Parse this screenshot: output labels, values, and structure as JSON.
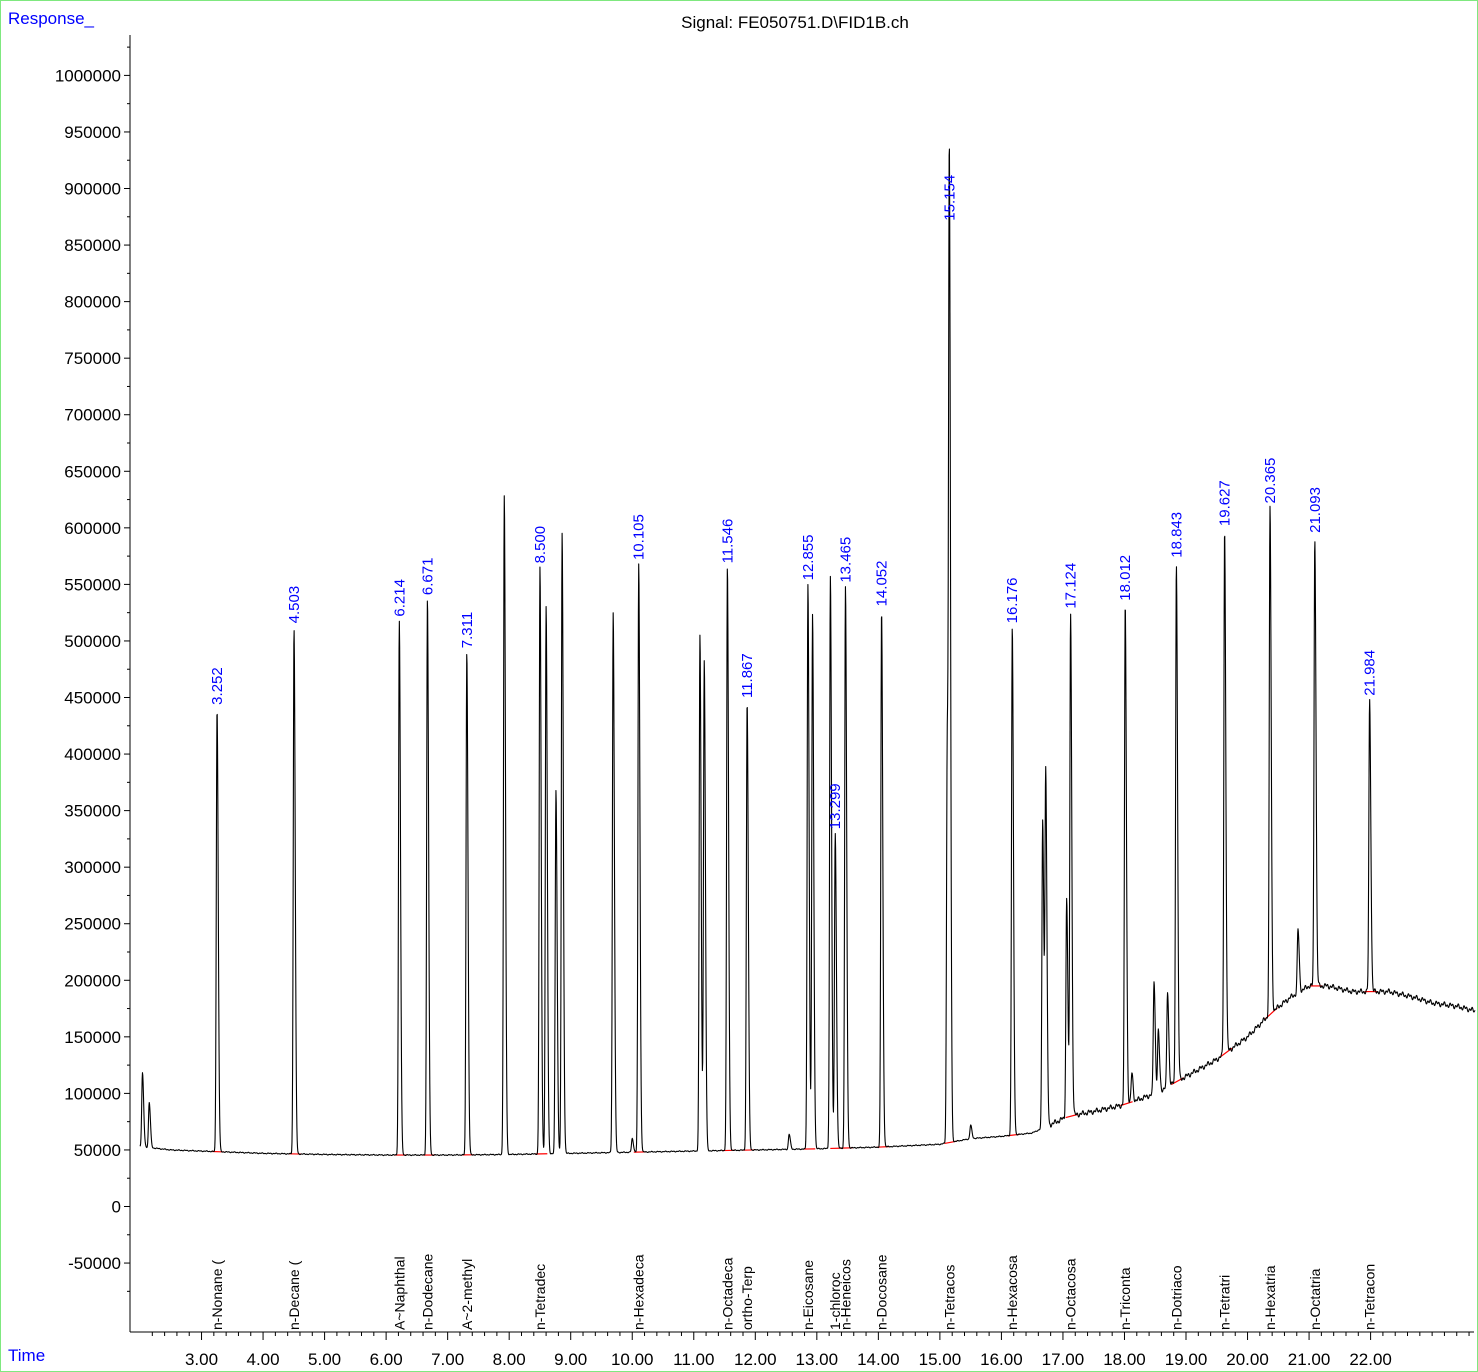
{
  "chart_data": {
    "type": "line",
    "title": "Signal: FE050751.D\\FID1B.ch",
    "ylabel": "Response_",
    "xlabel": "Time",
    "xlim": [
      2.0,
      23.7
    ],
    "ylim": [
      -110000,
      1050000
    ],
    "y_ticks": [
      -50000,
      0,
      50000,
      100000,
      150000,
      200000,
      250000,
      300000,
      350000,
      400000,
      450000,
      500000,
      550000,
      600000,
      650000,
      700000,
      750000,
      800000,
      850000,
      900000,
      950000,
      1000000
    ],
    "x_ticks": [
      "3.00",
      "4.00",
      "5.00",
      "6.00",
      "7.00",
      "8.00",
      "9.00",
      "10.00",
      "11.00",
      "12.00",
      "13.00",
      "14.00",
      "15.00",
      "16.00",
      "17.00",
      "18.00",
      "19.00",
      "20.00",
      "21.00",
      "22.00"
    ],
    "series": [
      {
        "baseline": [
          [
            2.0,
            53000
          ],
          [
            2.5,
            50000
          ],
          [
            3.25,
            48500
          ],
          [
            4.0,
            47000
          ],
          [
            5.0,
            46000
          ],
          [
            6.0,
            45500
          ],
          [
            7.0,
            45500
          ],
          [
            8.0,
            46000
          ],
          [
            9.0,
            47000
          ],
          [
            10.0,
            48000
          ],
          [
            11.0,
            49000
          ],
          [
            12.0,
            50000
          ],
          [
            13.0,
            51000
          ],
          [
            14.0,
            52500
          ],
          [
            15.0,
            55000
          ],
          [
            15.5,
            60000
          ],
          [
            16.0,
            62000
          ],
          [
            16.5,
            65000
          ],
          [
            16.9,
            75000
          ],
          [
            17.1,
            80000
          ],
          [
            17.5,
            84000
          ],
          [
            18.0,
            90000
          ],
          [
            18.5,
            100000
          ],
          [
            19.0,
            115000
          ],
          [
            19.5,
            130000
          ],
          [
            20.0,
            150000
          ],
          [
            20.4,
            172000
          ],
          [
            20.7,
            185000
          ],
          [
            21.0,
            195000
          ],
          [
            21.3,
            195000
          ],
          [
            21.7,
            190000
          ],
          [
            22.0,
            190000
          ],
          [
            22.3,
            190000
          ],
          [
            22.7,
            185000
          ],
          [
            23.0,
            180000
          ],
          [
            23.4,
            177000
          ],
          [
            23.7,
            173000
          ]
        ],
        "peaks": [
          {
            "t": 2.04,
            "h": 118000
          },
          {
            "t": 2.15,
            "h": 92000
          },
          {
            "t": 3.252,
            "h": 440000
          },
          {
            "t": 4.503,
            "h": 512000
          },
          {
            "t": 6.214,
            "h": 518000
          },
          {
            "t": 6.671,
            "h": 537000
          },
          {
            "t": 7.311,
            "h": 490000
          },
          {
            "t": 7.92,
            "h": 628000
          },
          {
            "t": 8.5,
            "h": 565000
          },
          {
            "t": 8.6,
            "h": 530000
          },
          {
            "t": 8.76,
            "h": 368000
          },
          {
            "t": 8.86,
            "h": 595000
          },
          {
            "t": 9.69,
            "h": 525000
          },
          {
            "t": 10.0,
            "h": 60000
          },
          {
            "t": 10.105,
            "h": 568000
          },
          {
            "t": 11.1,
            "h": 505000
          },
          {
            "t": 11.17,
            "h": 482000
          },
          {
            "t": 11.546,
            "h": 565000
          },
          {
            "t": 11.867,
            "h": 446000
          },
          {
            "t": 12.55,
            "h": 64000
          },
          {
            "t": 12.855,
            "h": 550000
          },
          {
            "t": 12.93,
            "h": 523000
          },
          {
            "t": 13.22,
            "h": 557000
          },
          {
            "t": 13.299,
            "h": 330000
          },
          {
            "t": 13.465,
            "h": 548000
          },
          {
            "t": 14.052,
            "h": 527000
          },
          {
            "t": 15.12,
            "h": 412000
          },
          {
            "t": 15.154,
            "h": 868000
          },
          {
            "t": 15.5,
            "h": 72000
          },
          {
            "t": 16.176,
            "h": 512000
          },
          {
            "t": 16.67,
            "h": 342000
          },
          {
            "t": 16.72,
            "h": 380000
          },
          {
            "t": 17.06,
            "h": 272000
          },
          {
            "t": 17.124,
            "h": 525000
          },
          {
            "t": 18.012,
            "h": 532000
          },
          {
            "t": 18.12,
            "h": 118000
          },
          {
            "t": 18.48,
            "h": 200000
          },
          {
            "t": 18.55,
            "h": 155000
          },
          {
            "t": 18.7,
            "h": 190000
          },
          {
            "t": 18.843,
            "h": 570000
          },
          {
            "t": 19.627,
            "h": 598000
          },
          {
            "t": 20.365,
            "h": 618000
          },
          {
            "t": 20.82,
            "h": 245000
          },
          {
            "t": 21.093,
            "h": 592000
          },
          {
            "t": 21.984,
            "h": 448000
          }
        ]
      }
    ],
    "peak_labels": [
      {
        "t": 3.252,
        "h": 440000,
        "text": "3.252"
      },
      {
        "t": 4.503,
        "h": 512000,
        "text": "4.503"
      },
      {
        "t": 6.214,
        "h": 518000,
        "text": "6.214"
      },
      {
        "t": 6.671,
        "h": 537000,
        "text": "6.671"
      },
      {
        "t": 7.311,
        "h": 490000,
        "text": "7.311"
      },
      {
        "t": 8.5,
        "h": 565000,
        "text": "8.500"
      },
      {
        "t": 10.105,
        "h": 568000,
        "text": "10.105"
      },
      {
        "t": 11.546,
        "h": 565000,
        "text": "11.546"
      },
      {
        "t": 11.867,
        "h": 446000,
        "text": "11.867"
      },
      {
        "t": 12.855,
        "h": 550000,
        "text": "12.855"
      },
      {
        "t": 13.299,
        "h": 330000,
        "text": "13.299"
      },
      {
        "t": 13.465,
        "h": 548000,
        "text": "13.465"
      },
      {
        "t": 14.052,
        "h": 527000,
        "text": "14.052"
      },
      {
        "t": 15.154,
        "h": 868000,
        "text": "15.154"
      },
      {
        "t": 16.176,
        "h": 512000,
        "text": "16.176"
      },
      {
        "t": 17.124,
        "h": 525000,
        "text": "17.124"
      },
      {
        "t": 18.012,
        "h": 532000,
        "text": "18.012"
      },
      {
        "t": 18.843,
        "h": 570000,
        "text": "18.843"
      },
      {
        "t": 19.627,
        "h": 598000,
        "text": "19.627"
      },
      {
        "t": 20.365,
        "h": 618000,
        "text": "20.365"
      },
      {
        "t": 21.093,
        "h": 592000,
        "text": "21.093"
      },
      {
        "t": 21.984,
        "h": 448000,
        "text": "21.984"
      }
    ],
    "compound_labels": [
      {
        "t": 3.252,
        "text": "n-Nonane ("
      },
      {
        "t": 4.503,
        "text": "n-Decane ("
      },
      {
        "t": 6.214,
        "text": "A~Naphthal"
      },
      {
        "t": 6.671,
        "text": "n-Dodecane"
      },
      {
        "t": 7.311,
        "text": "A~2-methyl"
      },
      {
        "t": 8.5,
        "text": "n-Tetradec"
      },
      {
        "t": 10.105,
        "text": "n-Hexadeca"
      },
      {
        "t": 11.546,
        "text": "n-Octadeca"
      },
      {
        "t": 11.867,
        "text": "ortho-Terp"
      },
      {
        "t": 12.855,
        "text": "n-Eicosane"
      },
      {
        "t": 13.299,
        "text": "1-chloroc"
      },
      {
        "t": 13.465,
        "text": "n-Heneicos"
      },
      {
        "t": 14.052,
        "text": "n-Docosane"
      },
      {
        "t": 15.154,
        "text": "n-Tetracos"
      },
      {
        "t": 16.176,
        "text": "n-Hexacosa"
      },
      {
        "t": 17.124,
        "text": "n-Octacosa"
      },
      {
        "t": 18.012,
        "text": "n-Triconta"
      },
      {
        "t": 18.843,
        "text": "n-Dotriaco"
      },
      {
        "t": 19.627,
        "text": "n-Tetratri"
      },
      {
        "t": 20.365,
        "text": "n-Hexatria"
      },
      {
        "t": 21.093,
        "text": "n-Octatria"
      },
      {
        "t": 21.984,
        "text": "n-Tetracon"
      }
    ],
    "colors": {
      "trace": "#000000",
      "peak_label": "#0000ff",
      "integration_baseline": "#ff0000",
      "axis_title": "#0000ff",
      "frame": "#7fe87f"
    }
  }
}
